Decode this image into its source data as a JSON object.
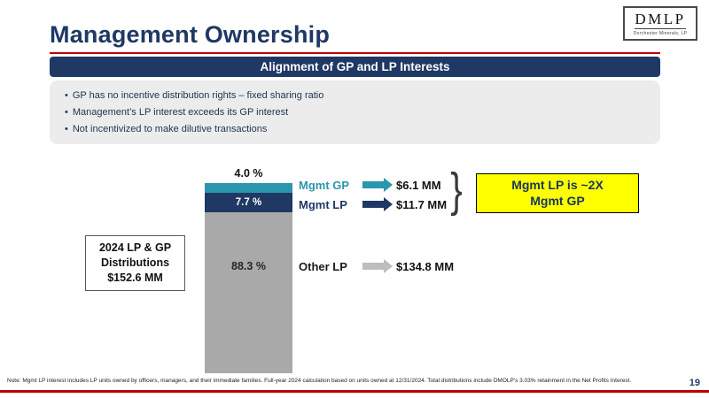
{
  "slide": {
    "title": "Management Ownership",
    "logo": {
      "text": "DMLP",
      "subtext": "Dorchester Minerals, LP"
    },
    "section_header": "Alignment of GP and LP Interests",
    "bullets": [
      "GP has no incentive distribution rights – fixed sharing ratio",
      "Management’s LP interest exceeds its GP interest",
      "Not incentivized to make dilutive transactions"
    ],
    "left_callout": {
      "lines": [
        "2024 LP & GP",
        "Distributions",
        "$152.6 MM"
      ]
    },
    "yellow_callout": {
      "lines": [
        "Mgmt LP is ~2X",
        "Mgmt GP"
      ]
    },
    "note": "Note: Mgmt LP interest includes LP units owned by officers, managers, and their immediate families. Full-year 2024 calculation based on units owned at 12/31/2024. Total distributions include DMOLP's 3.03% retainment in the Net Profits Interest.",
    "page_number": "19"
  },
  "chart_data": {
    "type": "bar",
    "stacked": true,
    "title": "2024 LP & GP Distributions $152.6 MM",
    "categories": [
      "2024 LP & GP Distributions"
    ],
    "series": [
      {
        "name": "Mgmt GP",
        "percent": 4.0,
        "percent_label": "4.0 %",
        "amount_mm": 6.1,
        "amount_label": "$6.1 MM",
        "color": "#2B96AC"
      },
      {
        "name": "Mgmt LP",
        "percent": 7.7,
        "percent_label": "7.7 %",
        "amount_mm": 11.7,
        "amount_label": "$11.7 MM",
        "color": "#1F3864"
      },
      {
        "name": "Other LP",
        "percent": 88.3,
        "percent_label": "88.3 %",
        "amount_mm": 134.8,
        "amount_label": "$134.8 MM",
        "color": "#A9A9A9"
      }
    ],
    "total": {
      "amount_mm": 152.6,
      "label": "$152.6 MM"
    },
    "annotation": "Mgmt LP is ~2X Mgmt GP",
    "ylim": [
      0,
      100
    ],
    "grid": false,
    "legend_position": "right"
  },
  "colors": {
    "navy": "#1F3864",
    "teal": "#2B96AC",
    "gray_bar": "#A9A9A9",
    "light_gray_panel": "#ECECEC",
    "red_rule": "#C00000",
    "yellow_highlight": "#FFFF00"
  }
}
